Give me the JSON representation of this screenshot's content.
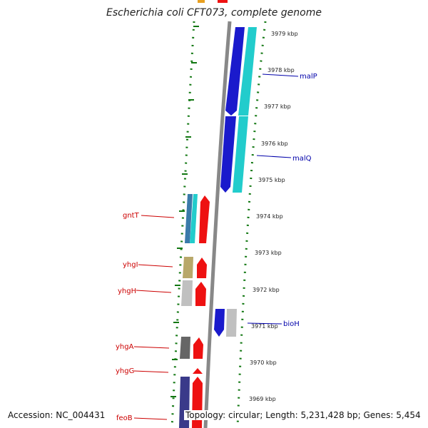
{
  "title": "Escherichia coli CFT073, complete genome",
  "footer": {
    "accession": "Accession: NC_004431",
    "summary": "Topology: circular; Length: 5,231,428 bp; Genes: 5,454"
  },
  "ticks": [
    "3979 kbp",
    "3978 kbp",
    "3977 kbp",
    "3976 kbp",
    "3975 kbp",
    "3974 kbp",
    "3973 kbp",
    "3972 kbp",
    "3971 kbp",
    "3970 kbp",
    "3969 kbp"
  ],
  "genes": {
    "malP": "malP",
    "malQ": "malQ",
    "bioH": "bioH",
    "gntT": "gntT",
    "yhgI": "yhgI",
    "yhgH": "yhgH",
    "yhgA": "yhgA",
    "yhgG": "yhgG",
    "feoB": "feoB"
  },
  "colors": {
    "forward_strand": "#ee1111",
    "reverse_strand": "#1111cc",
    "backbone": "#888888",
    "dotted_ring": "#117711",
    "forward_label": "#cc0000",
    "reverse_label": "#0000aa"
  }
}
